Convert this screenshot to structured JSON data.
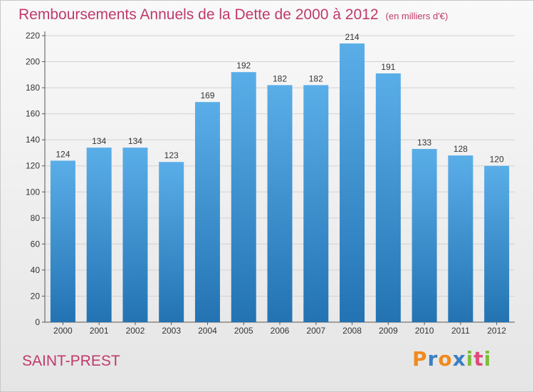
{
  "header": {
    "title": "Remboursements Annuels de la Dette de 2000 à 2012",
    "unit": "(en milliers d'€)"
  },
  "footer": {
    "commune": "SAINT-PREST",
    "brand": [
      "P",
      "r",
      "o",
      "x",
      "i",
      "t",
      "i"
    ]
  },
  "colors": {
    "title": "#c0396c",
    "bar_top": "#5aaee8",
    "bar_bottom": "#2373b3",
    "brand": [
      "#f08a1c",
      "#3a7fc2",
      "#f08a1c",
      "#3a7fc2",
      "#7bbf3b",
      "#e04a7c",
      "#7bbf3b"
    ]
  },
  "chart_data": {
    "type": "bar",
    "categories": [
      "2000",
      "2001",
      "2002",
      "2003",
      "2004",
      "2005",
      "2006",
      "2007",
      "2008",
      "2009",
      "2010",
      "2011",
      "2012"
    ],
    "values": [
      124,
      134,
      134,
      123,
      169,
      192,
      182,
      182,
      214,
      191,
      133,
      128,
      120
    ],
    "ylim": [
      0,
      220
    ],
    "yticks": [
      0,
      20,
      40,
      60,
      80,
      100,
      120,
      140,
      160,
      180,
      200,
      220
    ],
    "grid": true,
    "data_labels": true
  }
}
